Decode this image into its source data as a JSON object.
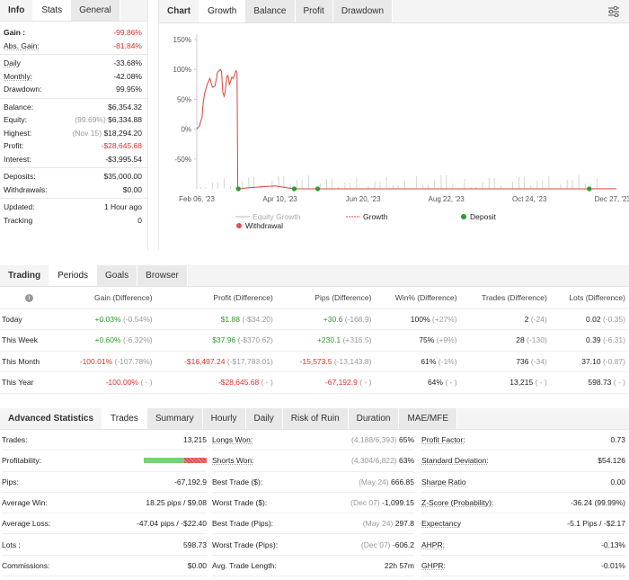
{
  "info": {
    "tabs": [
      "Info",
      "Stats",
      "General"
    ],
    "rows": [
      {
        "label": "Gain :",
        "value": "-99.86%",
        "cls": "r",
        "bold": true
      },
      {
        "label": "Abs. Gain:",
        "value": "-81.84%",
        "cls": "r",
        "u": true
      },
      {
        "sep": true
      },
      {
        "label": "Daily",
        "value": "-33.68%",
        "u": true
      },
      {
        "label": "Monthly:",
        "value": "-42.08%",
        "u": true
      },
      {
        "label": "Drawdown:",
        "value": "99.95%"
      },
      {
        "sep": true
      },
      {
        "label": "Balance:",
        "value": "$6,354.32"
      },
      {
        "label": "Equity:",
        "pre": "(99.69%)",
        "value": "$6,334.88"
      },
      {
        "label": "Highest:",
        "pre": "(Nov 15)",
        "value": "$18,294.20"
      },
      {
        "label": "Profit:",
        "value": "-$28,645.68",
        "cls": "r"
      },
      {
        "label": "Interest:",
        "value": "-$3,995.54"
      },
      {
        "sep": true
      },
      {
        "label": "Deposits:",
        "value": "$35,000.00"
      },
      {
        "label": "Withdrawals:",
        "value": "$0.00"
      },
      {
        "sep": true
      },
      {
        "label": "Updated:",
        "value": "1 Hour ago"
      },
      {
        "label": "Tracking",
        "value": "0"
      }
    ]
  },
  "chart": {
    "tabs": [
      "Chart",
      "Growth",
      "Balance",
      "Profit",
      "Drawdown"
    ],
    "settings_icon": "sliders-icon",
    "legend": {
      "equity": "Equity Growth",
      "growth": "Growth",
      "deposit": "Deposit",
      "withdrawal": "Withdrawal"
    },
    "colors": {
      "growth": "#d9443a",
      "deposit": "#2e9a2e",
      "withdrawal": "#e05050",
      "equity": "#bbbbbb"
    }
  },
  "chart_data": {
    "type": "line",
    "y_ticks": [
      "150%",
      "100%",
      "50%",
      "0%",
      "-50%"
    ],
    "x_ticks": [
      "Feb 06, '23",
      "Apr 10, '23",
      "Jun 20, '23",
      "Aug 22, '23",
      "Oct 24, '23",
      "Dec 27, '23"
    ],
    "ylim": [
      -100,
      150
    ],
    "series": [
      {
        "name": "Growth",
        "x": [
          0,
          2,
          4,
          5,
          6,
          8,
          10,
          12,
          14,
          16,
          18,
          19,
          20,
          21,
          22,
          23,
          24,
          25,
          26,
          27,
          28,
          29,
          30,
          31,
          31.5,
          32,
          40,
          60,
          75,
          100,
          150,
          200,
          250,
          300,
          323
        ],
        "y": [
          0,
          5,
          20,
          45,
          60,
          75,
          85,
          70,
          72,
          95,
          100,
          97,
          62,
          55,
          65,
          88,
          90,
          75,
          80,
          87,
          85,
          90,
          98,
          95,
          -100,
          -100,
          -98,
          -95,
          -100,
          -100,
          -100,
          -100,
          -100,
          -100,
          -99.86
        ]
      }
    ],
    "xlim": [
      0,
      325
    ],
    "deposits_x": [
      32,
      75,
      93,
      302
    ],
    "equity_bars_note": "Equity Growth"
  },
  "periods": {
    "tabs": [
      "Trading",
      "Periods",
      "Goals",
      "Browser"
    ],
    "info_icon": "info-icon",
    "headers": [
      "Gain (Difference)",
      "Profit (Difference)",
      "Pips (Difference)",
      "Win% (Difference)",
      "Trades (Difference)",
      "Lots (Difference)"
    ],
    "rows": [
      {
        "name": "Today",
        "c": [
          [
            "+0.03%",
            "(-0.54%)",
            "g"
          ],
          [
            "$1.88",
            "(-$34.20)",
            "g"
          ],
          [
            "+30.6",
            "(-168.9)",
            "g"
          ],
          [
            "100%",
            "(+27%)",
            ""
          ],
          [
            "2",
            "(-24)",
            ""
          ],
          [
            "0.02",
            "(-0.35)",
            ""
          ]
        ]
      },
      {
        "name": "This Week",
        "c": [
          [
            "+0.60%",
            "(-6.32%)",
            "g"
          ],
          [
            "$37.96",
            "(-$370.62)",
            "g"
          ],
          [
            "+230.1",
            "(+316.5)",
            "g"
          ],
          [
            "75%",
            "(+9%)",
            ""
          ],
          [
            "28",
            "(-130)",
            ""
          ],
          [
            "0.39",
            "(-6.31)",
            ""
          ]
        ]
      },
      {
        "name": "This Month",
        "c": [
          [
            "-100.01%",
            "(-107.78%)",
            "r"
          ],
          [
            "-$16,497.24",
            "(-$17,783.01)",
            "r"
          ],
          [
            "-15,573.5",
            "(-13,143.8)",
            "r"
          ],
          [
            "61%",
            "(-1%)",
            ""
          ],
          [
            "736",
            "(-34)",
            ""
          ],
          [
            "37.10",
            "(-0.87)",
            ""
          ]
        ]
      },
      {
        "name": "This Year",
        "c": [
          [
            "-100.00%",
            "( - )",
            "r"
          ],
          [
            "-$28,645.68",
            "( - )",
            "r"
          ],
          [
            "-67,192.9",
            "( - )",
            "r"
          ],
          [
            "64%",
            "( - )",
            ""
          ],
          [
            "13,215",
            "( - )",
            ""
          ],
          [
            "598.73",
            "( - )",
            ""
          ]
        ]
      }
    ]
  },
  "adv": {
    "tabs": [
      "Advanced Statistics",
      "Trades",
      "Summary",
      "Hourly",
      "Daily",
      "Risk of Ruin",
      "Duration",
      "MAE/MFE"
    ],
    "col1": [
      {
        "l": "Trades:",
        "v": "13,215"
      },
      {
        "l": "Profitability:",
        "bar": true
      },
      {
        "l": "Pips:",
        "v": "-67,192.9"
      },
      {
        "l": "Average Win:",
        "v": "18.25 pips / $9.08"
      },
      {
        "l": "Average Loss:",
        "v": "-47.04 pips / -$22.40"
      },
      {
        "l": "Lots :",
        "v": "598.73"
      },
      {
        "l": "Commissions:",
        "v": "$0.00"
      }
    ],
    "col2": [
      {
        "l": "Longs Won:",
        "p": "(4,188/6,393)",
        "v": "65%",
        "u": true
      },
      {
        "l": "Shorts Won:",
        "p": "(4,304/6,822)",
        "v": "63%",
        "u": true
      },
      {
        "l": "Best Trade ($):",
        "p": "(May 24)",
        "v": "666.85"
      },
      {
        "l": "Worst Trade ($):",
        "p": "(Dec 07)",
        "v": "-1,099.15"
      },
      {
        "l": "Best Trade (Pips):",
        "p": "(May 24)",
        "v": "297.8"
      },
      {
        "l": "Worst Trade (Pips):",
        "p": "(Dec 07)",
        "v": "-606.2"
      },
      {
        "l": "Avg. Trade Length:",
        "p": "",
        "v": "22h 57m"
      }
    ],
    "col3": [
      {
        "l": "Profit Factor:",
        "v": "0.73"
      },
      {
        "l": "Standard Deviation:",
        "v": "$54.126"
      },
      {
        "l": "Sharpe Ratio",
        "v": "0.00"
      },
      {
        "l": "Z-Score (Probability):",
        "v": "-36.24 (99.99%)"
      },
      {
        "l": "Expectancy",
        "v": "-5.1 Pips / -$2.17"
      },
      {
        "l": "AHPR:",
        "v": "-0.13%"
      },
      {
        "l": "GHPR:",
        "v": "-0.01%"
      }
    ],
    "profitability": {
      "win": 0.64,
      "win_color": "#7ccf7c",
      "loss_color": "#e05555"
    }
  }
}
